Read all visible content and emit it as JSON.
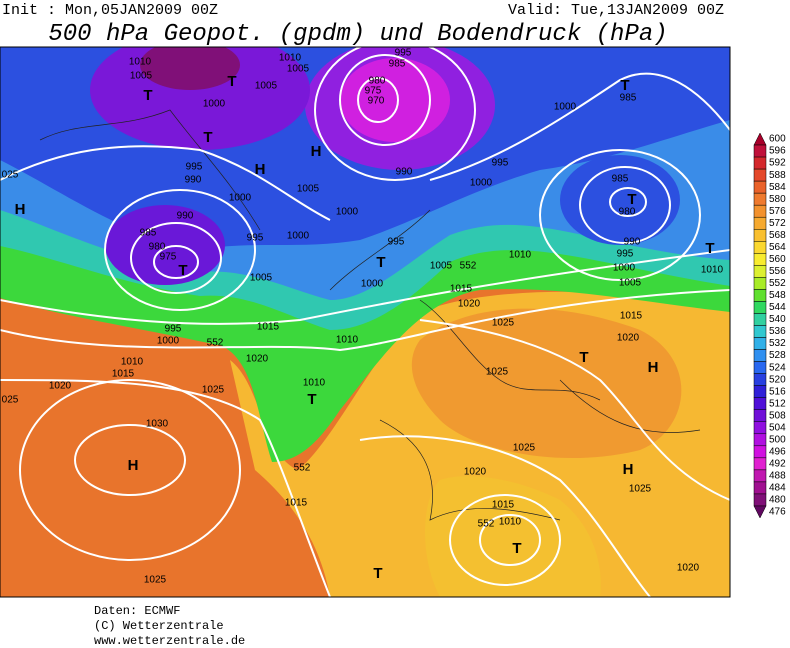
{
  "header": {
    "init": "Init : Mon,05JAN2009  00Z",
    "valid": "Valid: Tue,13JAN2009  00Z",
    "title": "500 hPa Geopot. (gpdm) und Bodendruck (hPa)"
  },
  "map": {
    "labels": [
      "1010",
      "1005",
      "1010",
      "1005",
      "995",
      "985",
      "980",
      "975",
      "970",
      "1005",
      "1000",
      "T",
      "T",
      "T",
      "T",
      "985",
      "1000",
      "H",
      "H",
      "995",
      "990",
      "1000",
      "1005",
      "1000",
      "1000",
      "995",
      "990",
      "985",
      "980",
      "975",
      "T",
      "995",
      "990",
      "1000",
      "985",
      "T",
      "980",
      "990",
      "995",
      "1000",
      "1005",
      "1010",
      "1010",
      "T",
      "H",
      "025",
      "995",
      "T",
      "1005",
      "552",
      "1000",
      "1005",
      "1015",
      "1020",
      "1025",
      "1015",
      "1020",
      "H",
      "1015",
      "995",
      "1000",
      "552",
      "1010",
      "1010",
      "1015",
      "1020",
      "1020",
      "1025",
      "025",
      "1010",
      "T",
      "T",
      "1025",
      "1030",
      "H",
      "552",
      "1015",
      "1020",
      "1025",
      "H",
      "1025",
      "1015",
      "1010",
      "552",
      "T",
      "T",
      "1020",
      "1025"
    ]
  },
  "colorbar": {
    "levels": [
      600,
      596,
      592,
      588,
      584,
      580,
      576,
      572,
      568,
      564,
      560,
      556,
      552,
      548,
      544,
      540,
      536,
      532,
      528,
      524,
      520,
      516,
      512,
      508,
      504,
      500,
      496,
      492,
      488,
      484,
      480,
      476
    ],
    "colors": [
      "#a8002a",
      "#c0103a",
      "#d4282c",
      "#e4482a",
      "#ea622a",
      "#ef7a2e",
      "#f3922e",
      "#f6aa30",
      "#f9c030",
      "#fbd830",
      "#f8ec30",
      "#dcf030",
      "#a8ec28",
      "#60e030",
      "#30d860",
      "#30d0a0",
      "#30c8d0",
      "#30b0e8",
      "#3090f0",
      "#2868f0",
      "#2840e0",
      "#3020d8",
      "#5010d8",
      "#7010d8",
      "#9010e0",
      "#b010e0",
      "#d010e0",
      "#e020d0",
      "#c018b0",
      "#a01090",
      "#801078",
      "#600860"
    ]
  },
  "footer": {
    "lines": [
      "Daten: ECMWF",
      "(C) Wetterzentrale",
      "www.wetterzentrale.de"
    ]
  }
}
